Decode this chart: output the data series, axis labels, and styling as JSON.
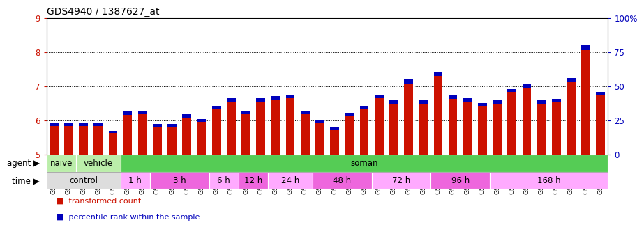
{
  "title": "GDS4940 / 1387627_at",
  "samples": [
    "GSM338857",
    "GSM338858",
    "GSM338859",
    "GSM338862",
    "GSM338864",
    "GSM338877",
    "GSM338880",
    "GSM338860",
    "GSM338861",
    "GSM338863",
    "GSM338865",
    "GSM338866",
    "GSM338867",
    "GSM338868",
    "GSM338869",
    "GSM338870",
    "GSM338871",
    "GSM338872",
    "GSM338873",
    "GSM338874",
    "GSM338875",
    "GSM338876",
    "GSM338878",
    "GSM338879",
    "GSM338881",
    "GSM338882",
    "GSM338883",
    "GSM338884",
    "GSM338885",
    "GSM338886",
    "GSM338887",
    "GSM338888",
    "GSM338889",
    "GSM338890",
    "GSM338891",
    "GSM338892",
    "GSM338893",
    "GSM338894"
  ],
  "red_values": [
    5.82,
    5.82,
    5.82,
    5.82,
    5.62,
    6.15,
    6.18,
    5.78,
    5.78,
    6.08,
    5.95,
    6.32,
    6.55,
    6.18,
    6.55,
    6.6,
    6.65,
    6.18,
    5.92,
    5.72,
    6.12,
    6.32,
    6.65,
    6.48,
    7.08,
    6.48,
    7.3,
    6.62,
    6.55,
    6.42,
    6.48,
    6.82,
    6.95,
    6.48,
    6.52,
    7.12,
    8.05,
    6.72
  ],
  "blue_heights": [
    0.1,
    0.08,
    0.1,
    0.08,
    0.07,
    0.1,
    0.1,
    0.1,
    0.1,
    0.1,
    0.08,
    0.1,
    0.1,
    0.1,
    0.1,
    0.1,
    0.1,
    0.1,
    0.07,
    0.07,
    0.09,
    0.1,
    0.1,
    0.1,
    0.12,
    0.1,
    0.12,
    0.1,
    0.1,
    0.09,
    0.1,
    0.1,
    0.12,
    0.1,
    0.1,
    0.12,
    0.15,
    0.1
  ],
  "ymin": 5.0,
  "ymax": 9.0,
  "yticks_left": [
    5,
    6,
    7,
    8,
    9
  ],
  "yticks_right_vals": [
    0,
    25,
    50,
    75,
    100
  ],
  "yticks_right_labels": [
    "0",
    "25",
    "50",
    "75",
    "100%"
  ],
  "red_color": "#CC1100",
  "blue_color": "#0000BB",
  "agent_groups": [
    {
      "label": "naive",
      "start": 0,
      "end": 2,
      "color": "#BBEEAA"
    },
    {
      "label": "vehicle",
      "start": 2,
      "end": 5,
      "color": "#BBEEAA"
    },
    {
      "label": "soman",
      "start": 5,
      "end": 38,
      "color": "#55CC55"
    }
  ],
  "time_groups": [
    {
      "label": "control",
      "start": 0,
      "end": 5,
      "color": "#DDDDDD"
    },
    {
      "label": "1 h",
      "start": 5,
      "end": 7,
      "color": "#FFAAFF"
    },
    {
      "label": "3 h",
      "start": 7,
      "end": 11,
      "color": "#EE66DD"
    },
    {
      "label": "6 h",
      "start": 11,
      "end": 13,
      "color": "#FFAAFF"
    },
    {
      "label": "12 h",
      "start": 13,
      "end": 15,
      "color": "#EE66DD"
    },
    {
      "label": "24 h",
      "start": 15,
      "end": 18,
      "color": "#FFAAFF"
    },
    {
      "label": "48 h",
      "start": 18,
      "end": 22,
      "color": "#EE66DD"
    },
    {
      "label": "72 h",
      "start": 22,
      "end": 26,
      "color": "#FFAAFF"
    },
    {
      "label": "96 h",
      "start": 26,
      "end": 30,
      "color": "#EE66DD"
    },
    {
      "label": "168 h",
      "start": 30,
      "end": 38,
      "color": "#FFAAFF"
    }
  ],
  "bar_width": 0.6,
  "title_fontsize": 10,
  "tick_fontsize": 6.5,
  "label_fontsize": 8.5,
  "row_label_fontsize": 8.5
}
